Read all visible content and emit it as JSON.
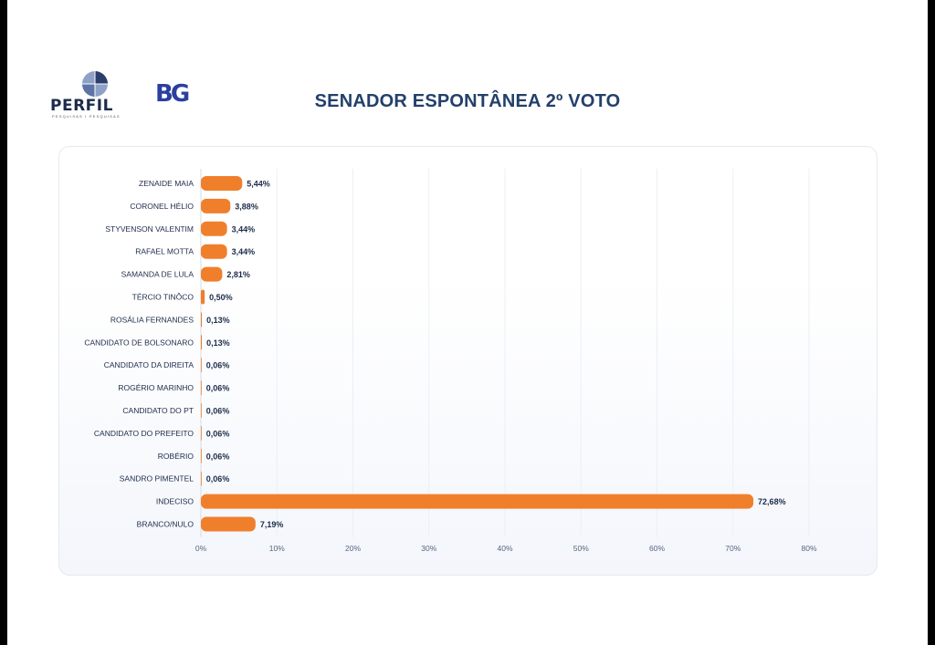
{
  "header": {
    "title": "SENADOR ESPONTÂNEA 2º VOTO",
    "logo_perfil": "PERFIL",
    "logo_perfil_tagline": "PESQUISAS I PESQUISAS",
    "logo_bg": "BG"
  },
  "colors": {
    "bar": "#f07f2c",
    "label": "#1d2b4a",
    "title": "#23406b",
    "axis": "#5a6480"
  },
  "chart_data": {
    "type": "bar",
    "orientation": "horizontal",
    "title": "SENADOR ESPONTÂNEA 2º VOTO",
    "categories": [
      "ZENAIDE MAIA",
      "CORONEL HÉLIO",
      "STYVENSON VALENTIM",
      "RAFAEL MOTTA",
      "SAMANDA DE LULA",
      "TÉRCIO TINÔCO",
      "ROSÁLIA FERNANDES",
      "CANDIDATO DE BOLSONARO",
      "CANDIDATO DA DIREITA",
      "ROGÉRIO MARINHO",
      "CANDIDATO DO PT",
      "CANDIDATO DO PREFEITO",
      "ROBÉRIO",
      "SANDRO PIMENTEL",
      "INDECISO",
      "BRANCO/NULO"
    ],
    "values": [
      5.44,
      3.88,
      3.44,
      3.44,
      2.81,
      0.5,
      0.13,
      0.13,
      0.06,
      0.06,
      0.06,
      0.06,
      0.06,
      0.06,
      72.68,
      7.19
    ],
    "value_labels": [
      "5,44%",
      "3,88%",
      "3,44%",
      "3,44%",
      "2,81%",
      "0,50%",
      "0,13%",
      "0,13%",
      "0,06%",
      "0,06%",
      "0,06%",
      "0,06%",
      "0,06%",
      "0,06%",
      "72,68%",
      "7,19%"
    ],
    "xlim": [
      0,
      80
    ],
    "xticks": [
      0,
      10,
      20,
      30,
      40,
      50,
      60,
      70,
      80
    ],
    "xtick_labels": [
      "0%",
      "10%",
      "20%",
      "30%",
      "40%",
      "50%",
      "60%",
      "70%",
      "80%"
    ],
    "grid": true,
    "legend": "none"
  }
}
